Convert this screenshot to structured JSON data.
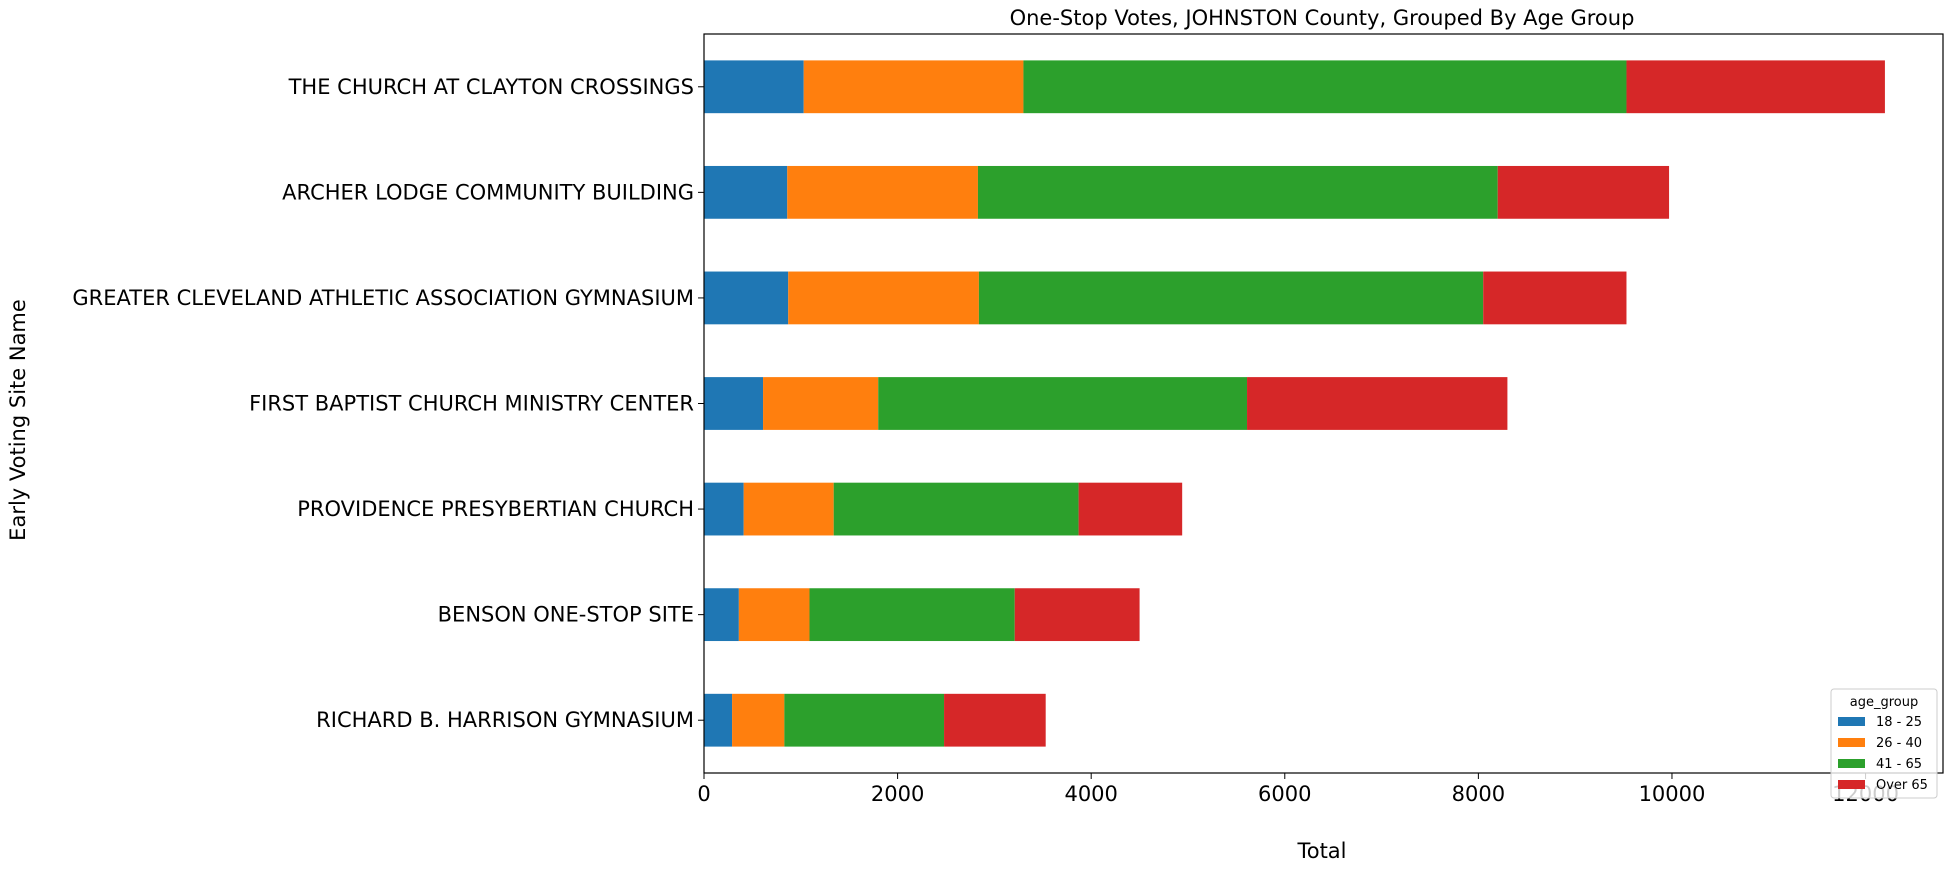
{
  "chart_data": {
    "type": "bar",
    "orientation": "horizontal",
    "stacked": true,
    "title": "One-Stop Votes, JOHNSTON County, Grouped By Age Group",
    "xlabel": "Total",
    "ylabel": "Early Voting Site Name",
    "xlim": [
      0,
      12800
    ],
    "xticks": [
      0,
      2000,
      4000,
      6000,
      8000,
      10000,
      12000
    ],
    "grid": false,
    "legend": {
      "title": "age_group",
      "placement": "lower-right"
    },
    "categories": [
      "THE CHURCH AT CLAYTON CROSSINGS",
      "ARCHER LODGE COMMUNITY BUILDING",
      "GREATER CLEVELAND ATHLETIC ASSOCIATION GYMNASIUM",
      "FIRST BAPTIST CHURCH MINISTRY CENTER",
      "PROVIDENCE PRESYBERTIAN CHURCH",
      "BENSON ONE-STOP SITE",
      "RICHARD B. HARRISON GYMNASIUM"
    ],
    "series": [
      {
        "name": "18 - 25",
        "color": "#1f77b4",
        "values": [
          1030,
          860,
          870,
          610,
          410,
          360,
          290
        ]
      },
      {
        "name": "26 - 40",
        "color": "#ff7f0e",
        "values": [
          2270,
          1970,
          1970,
          1190,
          930,
          730,
          540
        ]
      },
      {
        "name": "41 - 65",
        "color": "#2ca02c",
        "values": [
          6230,
          5370,
          5210,
          3810,
          2530,
          2120,
          1650
        ]
      },
      {
        "name": "Over 65",
        "color": "#d62728",
        "values": [
          2670,
          1770,
          1480,
          2690,
          1070,
          1290,
          1050
        ]
      }
    ]
  }
}
